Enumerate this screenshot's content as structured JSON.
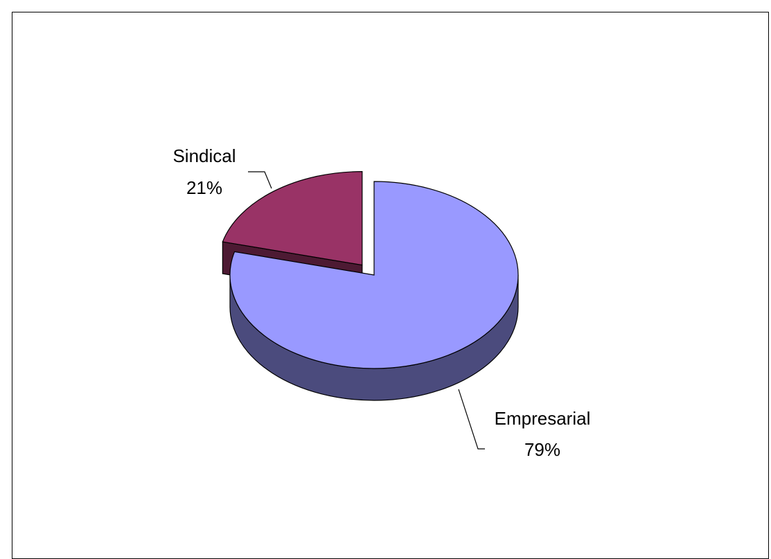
{
  "chart_data": {
    "type": "pie",
    "style": "3d-exploded",
    "title": "",
    "slices": [
      {
        "name": "Empresarial",
        "value": 79,
        "label": "79%",
        "color": "#9999ff",
        "side_color": "#4b4b7d"
      },
      {
        "name": "Sindical",
        "value": 21,
        "label": "21%",
        "color": "#993366",
        "side_color": "#4d1a33"
      }
    ],
    "legend": "none",
    "data_labels": "category-and-percent"
  }
}
